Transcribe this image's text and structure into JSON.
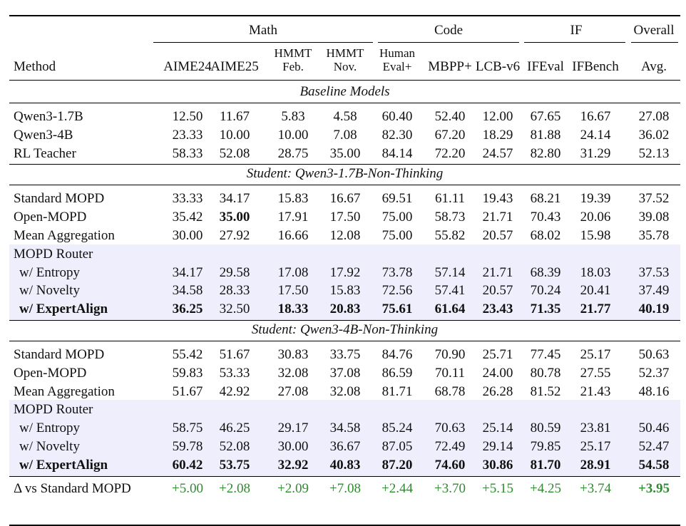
{
  "groups": [
    "Math",
    "Code",
    "IF",
    "Overall"
  ],
  "columns": [
    {
      "l1": "",
      "l2": "AIME24"
    },
    {
      "l1": "",
      "l2": "AIME25"
    },
    {
      "l1": "HMMT",
      "l2": "Feb."
    },
    {
      "l1": "HMMT",
      "l2": "Nov."
    },
    {
      "l1": "Human",
      "l2": "Eval+"
    },
    {
      "l1": "",
      "l2": "MBPP+"
    },
    {
      "l1": "",
      "l2": "LCB-v6"
    },
    {
      "l1": "",
      "l2": "IFEval"
    },
    {
      "l1": "",
      "l2": "IFBench"
    },
    {
      "l1": "",
      "l2": "Avg."
    }
  ],
  "method_header": "Method",
  "sections": [
    {
      "title": "Baseline Models",
      "rows": [
        {
          "method": "Qwen3-1.7B",
          "values": [
            "12.50",
            "11.67",
            "5.83",
            "4.58",
            "60.40",
            "52.40",
            "12.00",
            "67.65",
            "16.67",
            "27.08"
          ],
          "bold": []
        },
        {
          "method": "Qwen3-4B",
          "values": [
            "23.33",
            "10.00",
            "10.00",
            "7.08",
            "82.30",
            "67.20",
            "18.29",
            "81.88",
            "24.14",
            "36.02"
          ],
          "bold": []
        },
        {
          "method": "RL Teacher",
          "values": [
            "58.33",
            "52.08",
            "28.75",
            "35.00",
            "84.14",
            "72.20",
            "24.57",
            "82.80",
            "31.29",
            "52.13"
          ],
          "bold": []
        }
      ]
    },
    {
      "title": "Student: Qwen3-1.7B-Non-Thinking",
      "rows": [
        {
          "method": "Standard MOPD",
          "values": [
            "33.33",
            "34.17",
            "15.83",
            "16.67",
            "69.51",
            "61.11",
            "19.43",
            "68.21",
            "19.39",
            "37.52"
          ],
          "bold": []
        },
        {
          "method": "Open-MOPD",
          "values": [
            "35.42",
            "35.00",
            "17.91",
            "17.50",
            "75.00",
            "58.73",
            "21.71",
            "70.43",
            "20.06",
            "39.08"
          ],
          "bold": [
            1
          ]
        },
        {
          "method": "Mean Aggregation",
          "values": [
            "30.00",
            "27.92",
            "16.66",
            "12.08",
            "75.00",
            "55.82",
            "20.57",
            "68.02",
            "15.98",
            "35.78"
          ],
          "bold": []
        },
        {
          "method": "MOPD Router",
          "values": [],
          "bold": [],
          "band": true
        },
        {
          "method": "w/ Entropy",
          "values": [
            "34.17",
            "29.58",
            "17.08",
            "17.92",
            "73.78",
            "57.14",
            "21.71",
            "68.39",
            "18.03",
            "37.53"
          ],
          "bold": [],
          "band": true,
          "indent": true
        },
        {
          "method": "w/ Novelty",
          "values": [
            "34.58",
            "28.33",
            "17.50",
            "15.83",
            "72.56",
            "57.41",
            "20.57",
            "70.24",
            "20.41",
            "37.49"
          ],
          "bold": [],
          "band": true,
          "indent": true
        },
        {
          "method": "w/ ExpertAlign",
          "values": [
            "36.25",
            "32.50",
            "18.33",
            "20.83",
            "75.61",
            "61.64",
            "23.43",
            "71.35",
            "21.77",
            "40.19"
          ],
          "bold": [
            0,
            2,
            3,
            4,
            5,
            6,
            7,
            8,
            9
          ],
          "band": true,
          "indent": true,
          "bold_method": true
        }
      ]
    },
    {
      "title": "Student: Qwen3-4B-Non-Thinking",
      "rows": [
        {
          "method": "Standard MOPD",
          "values": [
            "55.42",
            "51.67",
            "30.83",
            "33.75",
            "84.76",
            "70.90",
            "25.71",
            "77.45",
            "25.17",
            "50.63"
          ],
          "bold": []
        },
        {
          "method": "Open-MOPD",
          "values": [
            "59.83",
            "53.33",
            "32.08",
            "37.08",
            "86.59",
            "70.11",
            "24.00",
            "80.78",
            "27.55",
            "52.37"
          ],
          "bold": []
        },
        {
          "method": "Mean Aggregation",
          "values": [
            "51.67",
            "42.92",
            "27.08",
            "32.08",
            "81.71",
            "68.78",
            "26.28",
            "81.52",
            "21.43",
            "48.16"
          ],
          "bold": []
        },
        {
          "method": "MOPD Router",
          "values": [],
          "bold": [],
          "band": true
        },
        {
          "method": "w/ Entropy",
          "values": [
            "58.75",
            "46.25",
            "29.17",
            "34.58",
            "85.24",
            "70.63",
            "25.14",
            "80.59",
            "23.81",
            "50.46"
          ],
          "bold": [],
          "band": true,
          "indent": true
        },
        {
          "method": "w/ Novelty",
          "values": [
            "59.78",
            "52.08",
            "30.00",
            "36.67",
            "87.05",
            "72.49",
            "29.14",
            "79.85",
            "25.17",
            "52.47"
          ],
          "bold": [],
          "band": true,
          "indent": true
        },
        {
          "method": "w/ ExpertAlign",
          "values": [
            "60.42",
            "53.75",
            "32.92",
            "40.83",
            "87.20",
            "74.60",
            "30.86",
            "81.70",
            "28.91",
            "54.58"
          ],
          "bold": [
            0,
            1,
            2,
            3,
            4,
            5,
            6,
            7,
            8,
            9
          ],
          "band": true,
          "indent": true,
          "bold_method": true
        }
      ]
    }
  ],
  "delta_row": {
    "method": "Δ vs Standard MOPD",
    "values": [
      "+5.00",
      "+2.08",
      "+2.09",
      "+7.08",
      "+2.44",
      "+3.70",
      "+5.15",
      "+4.25",
      "+3.74",
      "+3.95"
    ],
    "bold": [
      9
    ],
    "color": "#2e8b2e"
  }
}
